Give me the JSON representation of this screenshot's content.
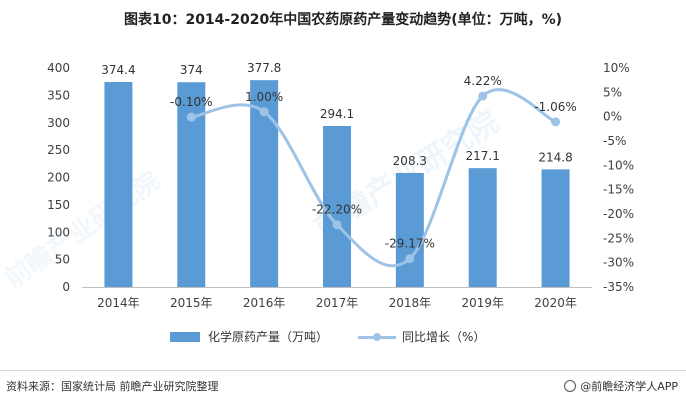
{
  "header": {
    "title": "图表10：2014-2020年中国农药原药产量变动趋势(单位：万吨，%)"
  },
  "chart_data": {
    "type": "bar+line",
    "categories": [
      "2014年",
      "2015年",
      "2016年",
      "2017年",
      "2018年",
      "2019年",
      "2020年"
    ],
    "series": [
      {
        "name": "化学原药产量（万吨）",
        "type": "bar",
        "axis": "left",
        "values": [
          374.4,
          374,
          377.8,
          294.1,
          208.3,
          217.1,
          214.8
        ],
        "labels": [
          "374.4",
          "374",
          "377.8",
          "294.1",
          "208.3",
          "217.1",
          "214.8"
        ]
      },
      {
        "name": "同比增长（%）",
        "type": "line",
        "axis": "right",
        "values": [
          null,
          -0.1,
          1.0,
          -22.2,
          -29.17,
          4.22,
          -1.06
        ],
        "labels": [
          "",
          "-0.10%",
          "1.00%",
          "-22.20%",
          "-29.17%",
          "4.22%",
          "-1.06%"
        ]
      }
    ],
    "y_left": {
      "min": 0,
      "max": 400,
      "ticks": [
        "0",
        "50",
        "100",
        "150",
        "200",
        "250",
        "300",
        "350",
        "400"
      ]
    },
    "y_right": {
      "min": -35,
      "max": 10,
      "ticks": [
        "10%",
        "5%",
        "0%",
        "-5%",
        "-10%",
        "-15%",
        "-20%",
        "-25%",
        "-30%",
        "-35%"
      ]
    },
    "colors": {
      "bar": "#5b9bd5",
      "line": "#9dc3e6"
    }
  },
  "legend": {
    "bar_label": "化学原药产量（万吨）",
    "line_label": "同比增长（%）"
  },
  "footer": {
    "source": "资料来源：国家统计局 前瞻产业研究院整理",
    "brand": "@前瞻经济学人APP"
  },
  "watermark": {
    "text": "前瞻产业研究院"
  }
}
